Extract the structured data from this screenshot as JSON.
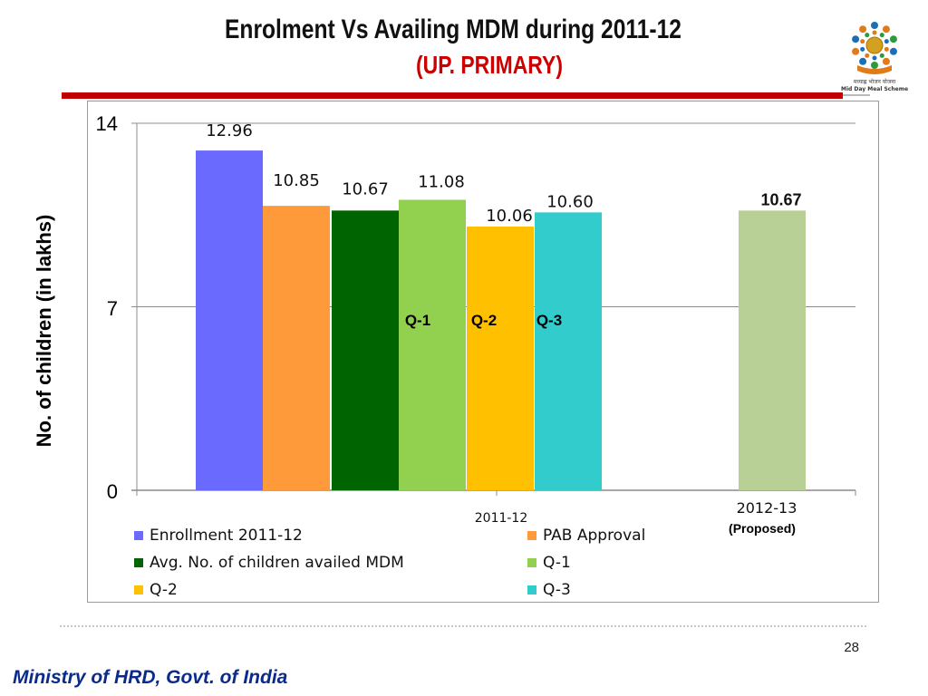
{
  "slide": {
    "title": "Enrolment Vs Availing MDM during  2011-12",
    "subtitle": "(UP. PRIMARY)",
    "page_number": "28",
    "footer": "Ministry of HRD, Govt. of India",
    "logo_text_hindi": "मध्याह्न भोजन योजना",
    "logo_text_english": "Mid Day Meal Scheme"
  },
  "chart_data": {
    "type": "bar",
    "ylabel": "No. of children (in lakhs)",
    "ylim": [
      0,
      14
    ],
    "yticks": [
      "0",
      "7",
      "14"
    ],
    "grid": true,
    "categories": [
      "2011-12",
      "2012-13"
    ],
    "category_note": "(Proposed)",
    "series": [
      {
        "name": "Enrollment 2011-12",
        "label": "12.96",
        "value": 12.96,
        "color": "#6a6aff",
        "category": "2011-12"
      },
      {
        "name": "PAB Approval",
        "label": "10.85",
        "value": 10.85,
        "color": "#ff9a3a",
        "category": "2011-12"
      },
      {
        "name": "Avg. No. of children availed MDM",
        "label": "10.67",
        "value": 10.67,
        "color": "#006400",
        "category": "2011-12"
      },
      {
        "name": "Q-1",
        "label": "11.08",
        "value": 11.08,
        "color": "#92d050",
        "category": "2011-12"
      },
      {
        "name": "Q-2",
        "label": "10.06",
        "value": 10.06,
        "color": "#ffc000",
        "category": "2011-12"
      },
      {
        "name": "Q-3",
        "label": "10.60",
        "value": 10.6,
        "color": "#33cccc",
        "category": "2011-12"
      },
      {
        "name": "",
        "label": "10.67",
        "value": 10.67,
        "color": "#b8d095",
        "category": "2012-13"
      }
    ],
    "annotations": [
      "Q-1",
      "Q-2",
      "Q-3"
    ],
    "legend_position": "bottom"
  }
}
